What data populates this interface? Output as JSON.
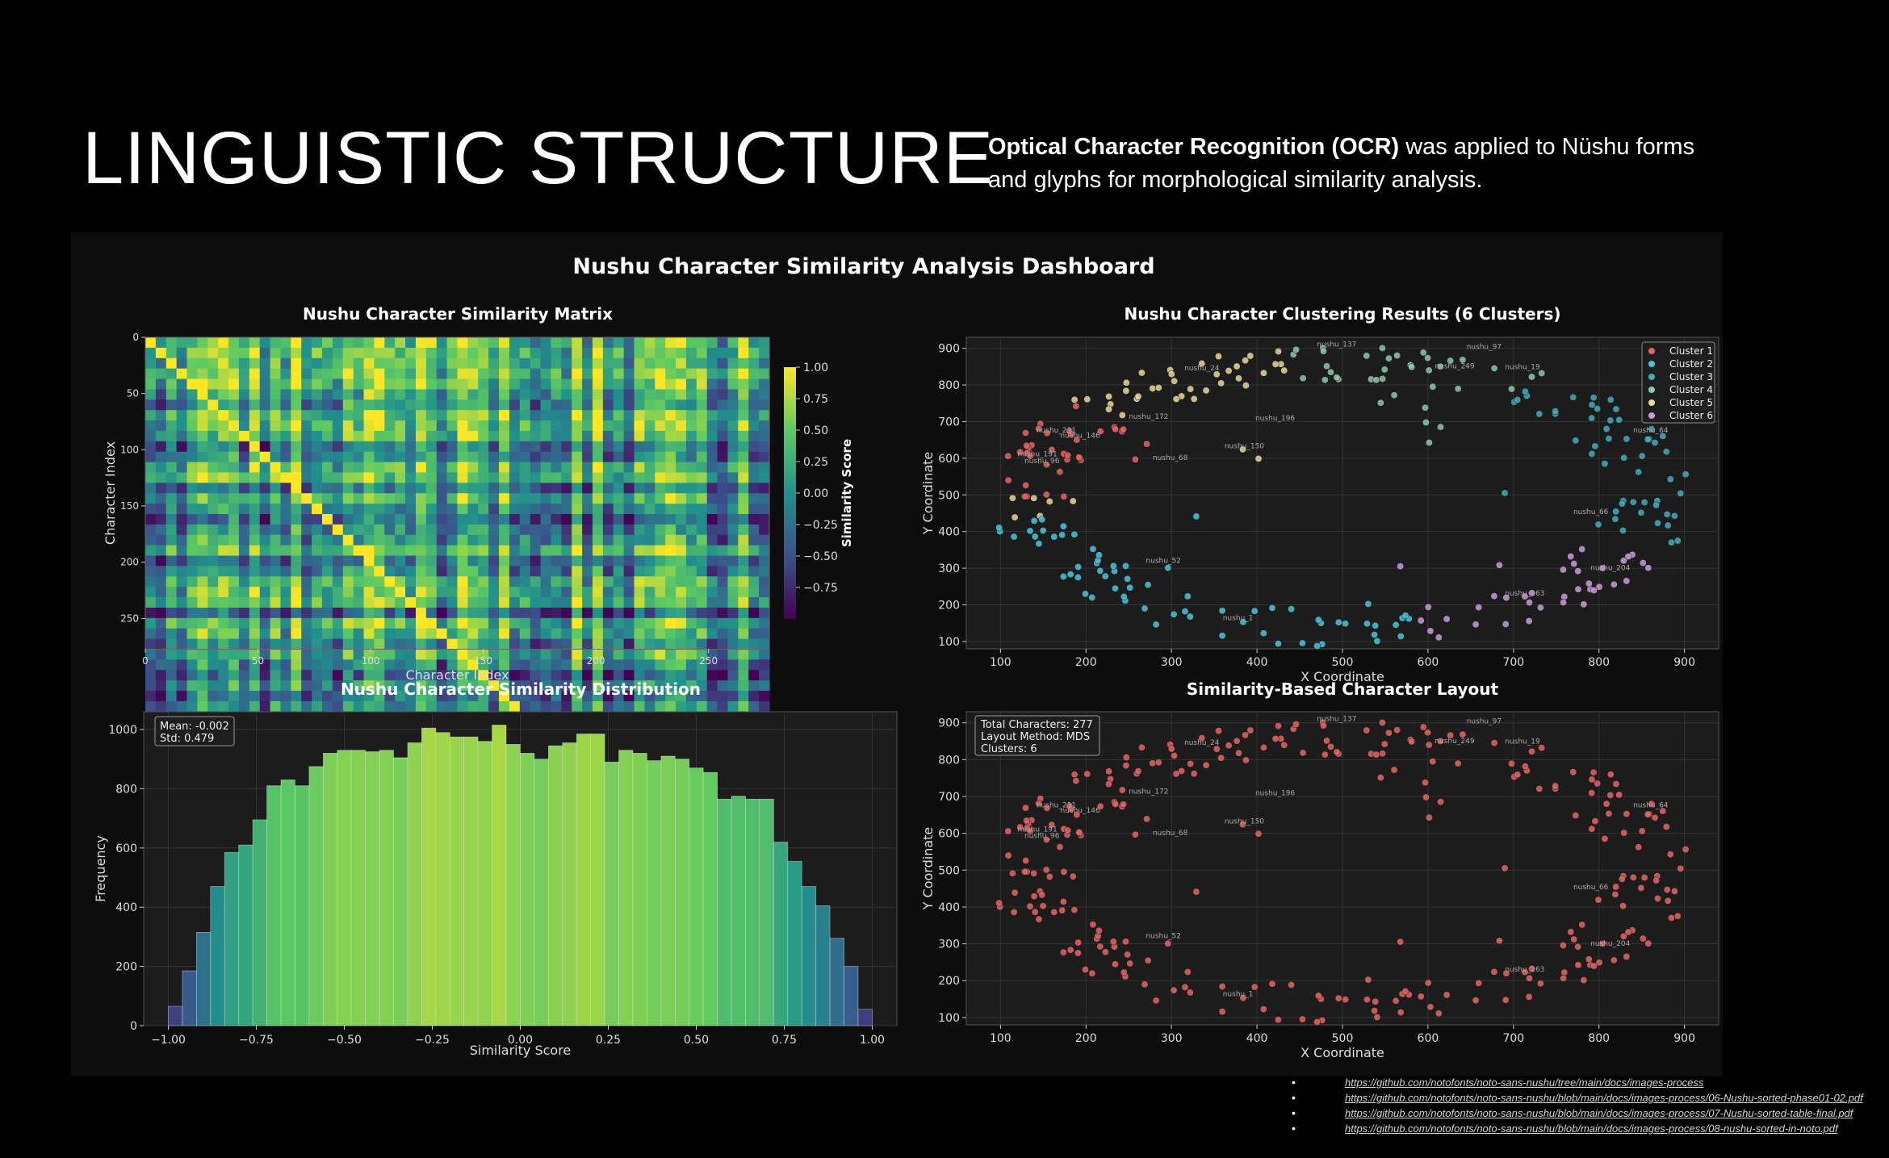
{
  "slide": {
    "title": "LINGUISTIC STRUCTURE",
    "intro_bold": "Optical Character Recognition (OCR)",
    "intro_rest": " was applied to Nüshu forms and glyphs for morphological similarity analysis."
  },
  "dashboard": {
    "title": "Nushu Character Similarity Analysis Dashboard"
  },
  "colors": {
    "cluster_1": "#e06666",
    "cluster_2": "#4ec3d8",
    "cluster_3": "#45aab8",
    "cluster_4": "#8ec8a8",
    "cluster_5": "#e8d79a",
    "cluster_6": "#c79ed8",
    "panel_bg": "#1c1c1c"
  },
  "chart_data": [
    {
      "id": "matrix",
      "type": "heatmap",
      "title": "Nushu Character Similarity Matrix",
      "xlabel": "Character Index",
      "ylabel": "Character Index",
      "xticks": [
        "0",
        "50",
        "100",
        "150",
        "200",
        "250"
      ],
      "yticks": [
        "0",
        "50",
        "100",
        "150",
        "200",
        "250"
      ],
      "size": 277,
      "colormap": "viridis",
      "colorbar": {
        "label": "Similarity Score",
        "range": [
          -1,
          1
        ],
        "ticks": [
          "1.00",
          "0.75",
          "0.50",
          "0.25",
          "0.00",
          "−0.25",
          "−0.50",
          "−0.75"
        ]
      }
    },
    {
      "id": "clusters",
      "type": "scatter",
      "title": "Nushu Character Clustering Results (6 Clusters)",
      "xlabel": "X Coordinate",
      "ylabel": "Y Coordinate",
      "xlim": [
        60,
        940
      ],
      "ylim": [
        80,
        930
      ],
      "xticks": [
        "100",
        "200",
        "300",
        "400",
        "500",
        "600",
        "700",
        "800",
        "900"
      ],
      "yticks": [
        "100",
        "200",
        "300",
        "400",
        "500",
        "600",
        "700",
        "800",
        "900"
      ],
      "legend": [
        "Cluster 1",
        "Cluster 2",
        "Cluster 3",
        "Cluster 4",
        "Cluster 5",
        "Cluster 6"
      ],
      "legend_position": "top-right",
      "n_points": 277,
      "grid": true,
      "labels": [
        {
          "text": "nushu_137",
          "x": 470,
          "y": 905
        },
        {
          "text": "nushu_97",
          "x": 645,
          "y": 898
        },
        {
          "text": "nushu_24",
          "x": 315,
          "y": 840
        },
        {
          "text": "nushu_249",
          "x": 608,
          "y": 845
        },
        {
          "text": "nushu_19",
          "x": 690,
          "y": 843
        },
        {
          "text": "nushu_172",
          "x": 250,
          "y": 708
        },
        {
          "text": "nushu_196",
          "x": 398,
          "y": 703
        },
        {
          "text": "nushu_64",
          "x": 840,
          "y": 670
        },
        {
          "text": "nushu_231",
          "x": 142,
          "y": 670
        },
        {
          "text": "nushu_146",
          "x": 170,
          "y": 656
        },
        {
          "text": "nushu_150",
          "x": 362,
          "y": 627
        },
        {
          "text": "nushu_191",
          "x": 120,
          "y": 605
        },
        {
          "text": "nushu_68",
          "x": 278,
          "y": 595
        },
        {
          "text": "nushu_96",
          "x": 128,
          "y": 587
        },
        {
          "text": "nushu_66",
          "x": 770,
          "y": 448
        },
        {
          "text": "nushu_52",
          "x": 270,
          "y": 315
        },
        {
          "text": "nushu_204",
          "x": 790,
          "y": 295
        },
        {
          "text": "nushu_263",
          "x": 690,
          "y": 225
        },
        {
          "text": "nushu_1",
          "x": 360,
          "y": 158
        }
      ]
    },
    {
      "id": "distribution",
      "type": "bar",
      "title": "Nushu Character Similarity Distribution",
      "xlabel": "Similarity Score",
      "ylabel": "Frequency",
      "xlim": [
        -1.07,
        1.07
      ],
      "ylim": [
        0,
        1060
      ],
      "xticks": [
        "−1.00",
        "−0.75",
        "−0.50",
        "−0.25",
        "0.00",
        "0.25",
        "0.50",
        "0.75",
        "1.00"
      ],
      "yticks": [
        "0",
        "200",
        "400",
        "600",
        "800",
        "1000"
      ],
      "annotation": [
        "Mean: -0.002",
        "Std: 0.479"
      ],
      "bin_start": -1.0,
      "bin_width": 0.04,
      "values": [
        65,
        185,
        315,
        470,
        585,
        610,
        695,
        810,
        830,
        810,
        875,
        920,
        930,
        930,
        925,
        930,
        905,
        955,
        1005,
        990,
        975,
        975,
        960,
        1015,
        950,
        920,
        900,
        945,
        955,
        985,
        985,
        890,
        930,
        920,
        895,
        910,
        900,
        870,
        855,
        765,
        775,
        765,
        765,
        620,
        555,
        470,
        405,
        295,
        200,
        55
      ]
    },
    {
      "id": "layout",
      "type": "scatter",
      "title": "Similarity-Based Character Layout",
      "xlabel": "X Coordinate",
      "ylabel": "Y Coordinate",
      "xlim": [
        60,
        940
      ],
      "ylim": [
        80,
        930
      ],
      "xticks": [
        "100",
        "200",
        "300",
        "400",
        "500",
        "600",
        "700",
        "800",
        "900"
      ],
      "yticks": [
        "100",
        "200",
        "300",
        "400",
        "500",
        "600",
        "700",
        "800",
        "900"
      ],
      "info": [
        "Total Characters: 277",
        "Layout Method: MDS",
        "Clusters: 6"
      ],
      "n_points": 277,
      "grid": true
    }
  ],
  "references": [
    "https://github.com/notofonts/noto-sans-nushu/tree/main/docs/images-process",
    "https://github.com/notofonts/noto-sans-nushu/blob/main/docs/images-process/06-Nushu-sorted-phase01-02.pdf",
    "https://github.com/notofonts/noto-sans-nushu/blob/main/docs/images-process/07-Nushu-sorted-table-final.pdf",
    "https://github.com/notofonts/noto-sans-nushu/blob/main/docs/images-process/08-nushu-sorted-in-noto.pdf"
  ]
}
